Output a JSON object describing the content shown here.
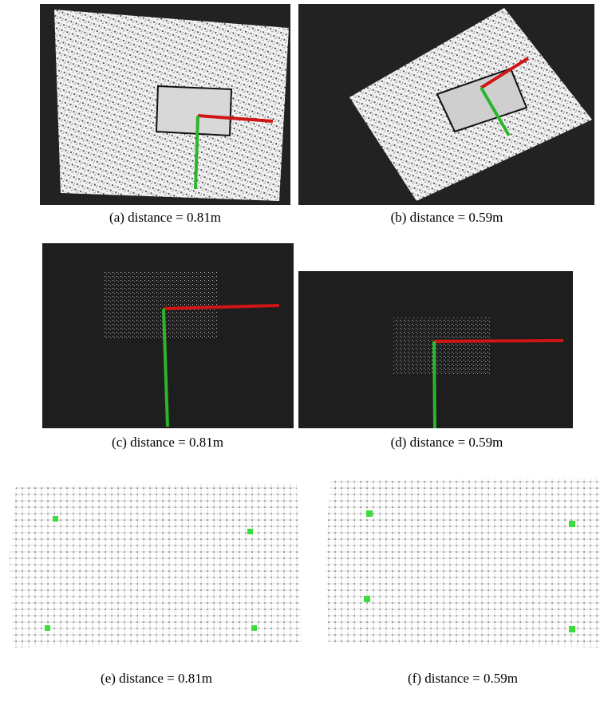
{
  "captions": [
    "(a)  distance = 0.81m",
    "(b)  distance = 0.59m",
    "(c)  distance = 0.81m",
    "(d)  distance = 0.59m",
    "(e)  distance = 0.81m",
    "(f)  distance = 0.59m"
  ]
}
